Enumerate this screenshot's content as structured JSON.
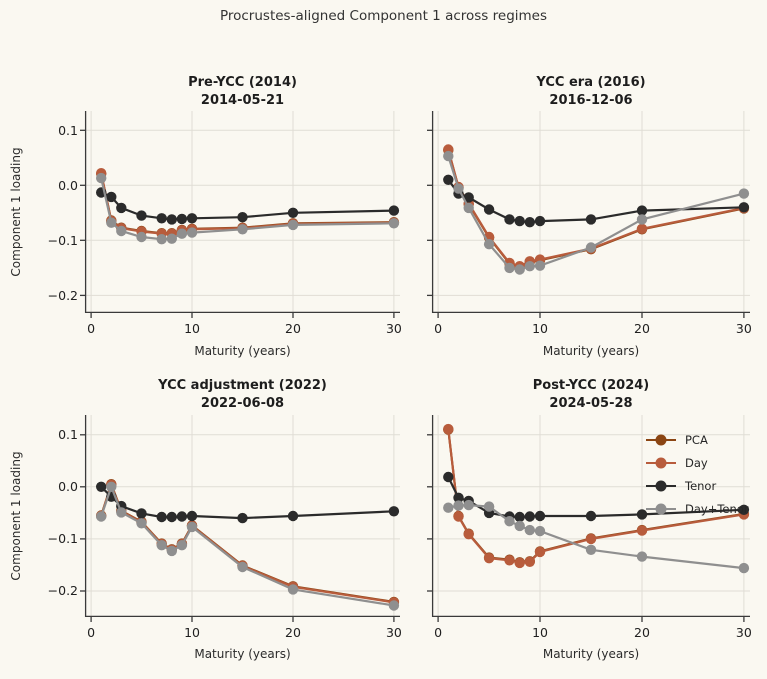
{
  "figure": {
    "title": "Procrustes-aligned Component 1 across regimes",
    "background": "#faf8f1",
    "grid_color": "#e0ddd5",
    "axis_color": "#3a3a3a",
    "text_color": "#262626"
  },
  "labels": {
    "xlabel": "Maturity (years)",
    "ylabel": "Component 1 loading"
  },
  "legend": {
    "position": "upper-right of Post-YCC panel",
    "items": [
      {
        "label": "PCA",
        "color": "#8b4513"
      },
      {
        "label": "Day",
        "color": "#b85c3c"
      },
      {
        "label": "Tenor",
        "color": "#2b2b2b"
      },
      {
        "label": "Day+Tenor",
        "color": "#8f8f8f"
      }
    ]
  },
  "chart_data": [
    {
      "type": "line",
      "title": "Pre-YCC (2014)",
      "subtitle": "2014-05-21",
      "xlabel": "Maturity (years)",
      "ylabel": "Component 1 loading",
      "x": [
        1,
        2,
        3,
        5,
        7,
        8,
        9,
        10,
        15,
        20,
        30
      ],
      "xlim": [
        -0.6,
        30.6
      ],
      "ylim": [
        -0.232,
        0.135
      ],
      "xticks": [
        0,
        10,
        20,
        30
      ],
      "xtick_labels": [
        "0",
        "10",
        "20",
        "30"
      ],
      "yticks": [
        0.1,
        0.0,
        -0.1,
        -0.2
      ],
      "ytick_labels": [
        "0.1",
        "0.0",
        "−0.1",
        "−0.2"
      ],
      "grid": true,
      "series": [
        {
          "name": "PCA",
          "color": "#8b4513",
          "values": [
            0.021,
            -0.064,
            -0.077,
            -0.083,
            -0.087,
            -0.087,
            -0.081,
            -0.079,
            -0.077,
            -0.069,
            -0.067
          ]
        },
        {
          "name": "Day",
          "color": "#b85c3c",
          "values": [
            0.022,
            -0.065,
            -0.078,
            -0.084,
            -0.088,
            -0.088,
            -0.082,
            -0.08,
            -0.078,
            -0.07,
            -0.068
          ]
        },
        {
          "name": "Tenor",
          "color": "#2b2b2b",
          "values": [
            -0.013,
            -0.021,
            -0.041,
            -0.055,
            -0.06,
            -0.062,
            -0.061,
            -0.06,
            -0.058,
            -0.05,
            -0.046
          ]
        },
        {
          "name": "Day+Tenor",
          "color": "#8f8f8f",
          "values": [
            0.013,
            -0.068,
            -0.083,
            -0.094,
            -0.098,
            -0.097,
            -0.088,
            -0.086,
            -0.08,
            -0.072,
            -0.069
          ]
        }
      ]
    },
    {
      "type": "line",
      "title": "YCC era (2016)",
      "subtitle": "2016-12-06",
      "xlabel": "Maturity (years)",
      "ylabel": "Component 1 loading",
      "x": [
        1,
        2,
        3,
        5,
        7,
        8,
        9,
        10,
        15,
        20,
        30
      ],
      "xlim": [
        -0.6,
        30.6
      ],
      "ylim": [
        -0.232,
        0.135
      ],
      "xticks": [
        0,
        10,
        20,
        30
      ],
      "xtick_labels": [
        "0",
        "10",
        "20",
        "30"
      ],
      "yticks": [
        0.1,
        0.0,
        -0.1,
        -0.2
      ],
      "ytick_labels": [
        "0.1",
        "0.0",
        "−0.1",
        "−0.2"
      ],
      "grid": true,
      "series": [
        {
          "name": "PCA",
          "color": "#8b4513",
          "values": [
            0.064,
            -0.004,
            -0.034,
            -0.095,
            -0.142,
            -0.148,
            -0.139,
            -0.136,
            -0.116,
            -0.08,
            -0.042
          ]
        },
        {
          "name": "Day",
          "color": "#b85c3c",
          "values": [
            0.065,
            -0.003,
            -0.033,
            -0.094,
            -0.141,
            -0.147,
            -0.138,
            -0.135,
            -0.115,
            -0.079,
            -0.041
          ]
        },
        {
          "name": "Tenor",
          "color": "#2b2b2b",
          "values": [
            0.01,
            -0.015,
            -0.022,
            -0.044,
            -0.062,
            -0.065,
            -0.067,
            -0.065,
            -0.062,
            -0.046,
            -0.04
          ]
        },
        {
          "name": "Day+Tenor",
          "color": "#8f8f8f",
          "values": [
            0.053,
            -0.006,
            -0.041,
            -0.107,
            -0.15,
            -0.153,
            -0.147,
            -0.146,
            -0.113,
            -0.062,
            -0.015
          ]
        }
      ]
    },
    {
      "type": "line",
      "title": "YCC adjustment (2022)",
      "subtitle": "2022-06-08",
      "xlabel": "Maturity (years)",
      "ylabel": "Component 1 loading",
      "x": [
        1,
        2,
        3,
        5,
        7,
        8,
        9,
        10,
        15,
        20,
        30
      ],
      "xlim": [
        -0.6,
        30.6
      ],
      "ylim": [
        -0.25,
        0.138
      ],
      "xticks": [
        0,
        10,
        20,
        30
      ],
      "xtick_labels": [
        "0",
        "10",
        "20",
        "30"
      ],
      "yticks": [
        0.1,
        0.0,
        -0.1,
        -0.2
      ],
      "ytick_labels": [
        "0.1",
        "0.0",
        "−0.1",
        "−0.2"
      ],
      "grid": true,
      "series": [
        {
          "name": "PCA",
          "color": "#8b4513",
          "values": [
            -0.055,
            0.005,
            -0.046,
            -0.067,
            -0.109,
            -0.12,
            -0.109,
            -0.074,
            -0.151,
            -0.191,
            -0.221
          ]
        },
        {
          "name": "Day",
          "color": "#b85c3c",
          "values": [
            -0.056,
            0.004,
            -0.047,
            -0.068,
            -0.11,
            -0.121,
            -0.11,
            -0.075,
            -0.152,
            -0.192,
            -0.222
          ]
        },
        {
          "name": "Tenor",
          "color": "#2b2b2b",
          "values": [
            0.0,
            -0.019,
            -0.037,
            -0.051,
            -0.058,
            -0.058,
            -0.057,
            -0.056,
            -0.06,
            -0.056,
            -0.047
          ]
        },
        {
          "name": "Day+Tenor",
          "color": "#8f8f8f",
          "values": [
            -0.057,
            0.0,
            -0.049,
            -0.07,
            -0.112,
            -0.123,
            -0.112,
            -0.077,
            -0.154,
            -0.197,
            -0.228
          ]
        }
      ]
    },
    {
      "type": "line",
      "title": "Post-YCC (2024)",
      "subtitle": "2024-05-28",
      "xlabel": "Maturity (years)",
      "ylabel": "Component 1 loading",
      "x": [
        1,
        2,
        3,
        5,
        7,
        8,
        9,
        10,
        15,
        20,
        30
      ],
      "xlim": [
        -0.6,
        30.6
      ],
      "ylim": [
        -0.25,
        0.138
      ],
      "xticks": [
        0,
        10,
        20,
        30
      ],
      "xtick_labels": [
        "0",
        "10",
        "20",
        "30"
      ],
      "yticks": [
        0.1,
        0.0,
        -0.1,
        -0.2
      ],
      "ytick_labels": [
        "0.1",
        "0.0",
        "−0.1",
        "−0.2"
      ],
      "grid": true,
      "legend_visible": true,
      "series": [
        {
          "name": "PCA",
          "color": "#8b4513",
          "values": [
            0.11,
            -0.056,
            -0.09,
            -0.136,
            -0.14,
            -0.145,
            -0.143,
            -0.124,
            -0.099,
            -0.083,
            -0.052
          ]
        },
        {
          "name": "Day",
          "color": "#b85c3c",
          "values": [
            0.111,
            -0.057,
            -0.091,
            -0.137,
            -0.141,
            -0.146,
            -0.144,
            -0.125,
            -0.1,
            -0.084,
            -0.053
          ]
        },
        {
          "name": "Tenor",
          "color": "#2b2b2b",
          "values": [
            0.019,
            -0.021,
            -0.027,
            -0.05,
            -0.057,
            -0.058,
            -0.057,
            -0.056,
            -0.056,
            -0.053,
            -0.044
          ]
        },
        {
          "name": "Day+Tenor",
          "color": "#8f8f8f",
          "values": [
            -0.04,
            -0.036,
            -0.035,
            -0.038,
            -0.066,
            -0.075,
            -0.083,
            -0.085,
            -0.121,
            -0.134,
            -0.156
          ]
        }
      ]
    }
  ]
}
